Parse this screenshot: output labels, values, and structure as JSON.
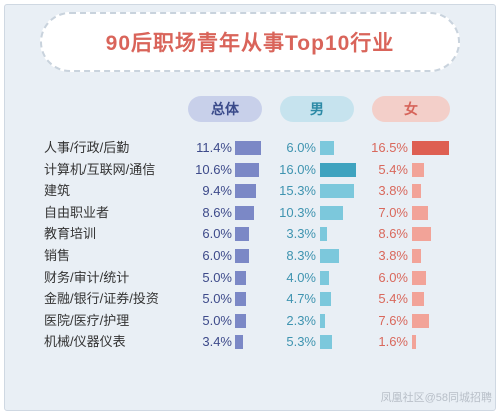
{
  "chart_data": {
    "type": "bar",
    "title": "90后职场青年从事Top10行业",
    "categories": [
      "人事/行政/后勤",
      "计算机/互联网/通信",
      "建筑",
      "自由职业者",
      "教育培训",
      "销售",
      "财务/审计/统计",
      "金融/银行/证券/投资",
      "医院/医疗/护理",
      "机械/仪器仪表"
    ],
    "series": [
      {
        "name": "总体",
        "color": "#7b88c6",
        "textColor": "#3d4a8a",
        "values": [
          11.4,
          10.6,
          9.4,
          8.6,
          6.0,
          6.0,
          5.0,
          5.0,
          5.0,
          3.4
        ],
        "labels": [
          "11.4%",
          "10.6%",
          "9.4%",
          "8.6%",
          "6.0%",
          "6.0%",
          "5.0%",
          "5.0%",
          "5.0%",
          "3.4%"
        ]
      },
      {
        "name": "男",
        "color": "#7cc8dc",
        "highlight": "#3fa3bf",
        "textColor": "#3f94b0",
        "values": [
          6.0,
          16.0,
          15.3,
          10.3,
          3.3,
          8.3,
          4.0,
          4.7,
          2.3,
          5.3
        ],
        "labels": [
          "6.0%",
          "16.0%",
          "15.3%",
          "10.3%",
          "3.3%",
          "8.3%",
          "4.0%",
          "4.7%",
          "2.3%",
          "5.3%"
        ]
      },
      {
        "name": "女",
        "color": "#f2a398",
        "highlight": "#de5f52",
        "textColor": "#d9685c",
        "values": [
          16.5,
          5.4,
          3.8,
          7.0,
          8.6,
          3.8,
          6.0,
          5.4,
          7.6,
          1.6
        ],
        "labels": [
          "16.5%",
          "5.4%",
          "3.8%",
          "7.0%",
          "8.6%",
          "3.8%",
          "6.0%",
          "5.4%",
          "7.6%",
          "1.6%"
        ]
      }
    ]
  },
  "watermark": "凤凰社区@58同城招聘"
}
